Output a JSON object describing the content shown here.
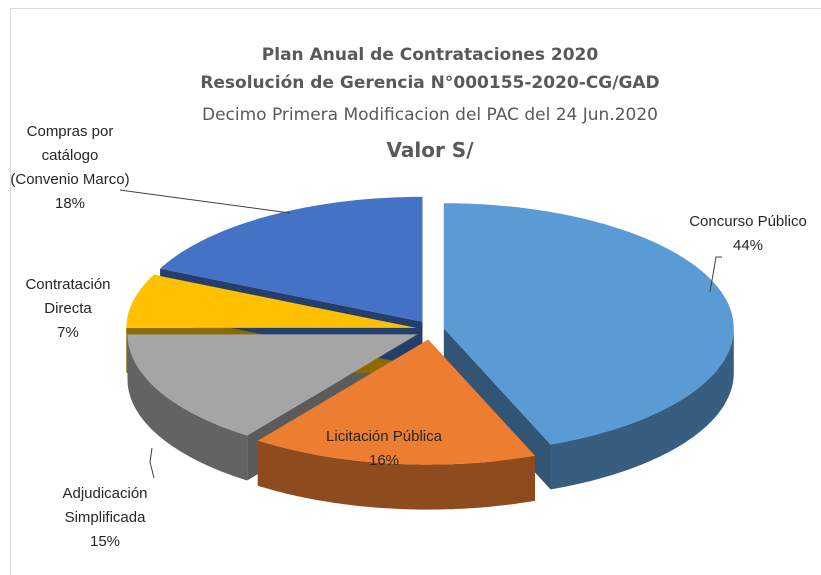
{
  "chart_data": {
    "type": "pie",
    "title": "Plan Anual de Contrataciones 2020",
    "subtitle": [
      "Resolución de Gerencia N°000155-2020-CG/GAD",
      "Decimo Primera Modificacion del PAC del 24 Jun.2020",
      "Valor S/"
    ],
    "categories": [
      "Concurso Público",
      "Licitación Pública",
      "Adjudicación Simplificada",
      "Contratación Directa",
      "Compras por catálogo (Convenio Marco)"
    ],
    "values": [
      44,
      16,
      15,
      7,
      18
    ],
    "value_labels": [
      "44%",
      "16%",
      "15%",
      "7%",
      "18%"
    ],
    "colors": [
      "#5b9bd5",
      "#ed7d31",
      "#a5a5a5",
      "#ffc000",
      "#4472c4"
    ]
  }
}
